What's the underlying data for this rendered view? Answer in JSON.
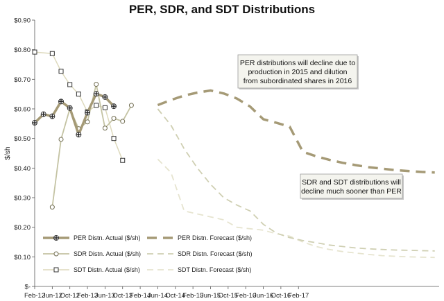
{
  "chart_data": {
    "type": "line",
    "title": "PER, SDR, and SDT Distributions",
    "ylabel": "$/sh",
    "xlabel": "",
    "ylim": [
      0,
      0.9
    ],
    "yticks": [
      {
        "value": 0,
        "label": "$-"
      },
      {
        "value": 0.1,
        "label": "$0.10"
      },
      {
        "value": 0.2,
        "label": "$0.20"
      },
      {
        "value": 0.3,
        "label": "$0.30"
      },
      {
        "value": 0.4,
        "label": "$0.40"
      },
      {
        "value": 0.5,
        "label": "$0.50"
      },
      {
        "value": 0.6,
        "label": "$0.60"
      },
      {
        "value": 0.7,
        "label": "$0.70"
      },
      {
        "value": 0.8,
        "label": "$0.80"
      },
      {
        "value": 0.9,
        "label": "$0.90"
      }
    ],
    "xticks": [
      "Feb-12",
      "Jun-12",
      "Oct-12",
      "Feb-13",
      "Jun-13",
      "Oct-13",
      "Feb-14",
      "Jun-14",
      "Oct-14",
      "Feb-15",
      "Jun-15",
      "Oct-15",
      "Feb-16",
      "Jun-16",
      "Oct-16",
      "Feb-17"
    ],
    "x_units": "months since Feb-12",
    "grid": false,
    "legend": "bottom-left",
    "series": [
      {
        "name": "PER Distn. Actual ($/sh)",
        "style": "actual-thick",
        "color": "#a59a76",
        "x": [
          0,
          2,
          4,
          6,
          8,
          10,
          12,
          14,
          16,
          18
        ],
        "y": [
          0.553,
          0.582,
          0.575,
          0.625,
          0.603,
          0.513,
          0.587,
          0.651,
          0.64,
          0.609
        ]
      },
      {
        "name": "SDR Distn. Actual ($/sh)",
        "style": "actual-thin",
        "color": "#c4c3a3",
        "x": [
          4,
          6,
          8,
          10,
          12,
          14,
          16,
          18,
          20,
          22
        ],
        "y": [
          0.268,
          0.497,
          0.601,
          0.533,
          0.556,
          0.683,
          0.535,
          0.568,
          0.558,
          0.612
        ]
      },
      {
        "name": "SDT Distn. Actual ($/sh)",
        "style": "actual-square",
        "color": "#ddd9bc",
        "x": [
          0,
          4,
          6,
          8,
          10,
          12,
          14,
          16,
          18,
          20
        ],
        "y": [
          0.792,
          0.787,
          0.727,
          0.682,
          0.65,
          0.59,
          0.612,
          0.604,
          0.5,
          0.426
        ]
      },
      {
        "name": "PER Distn. Forecast ($/sh)",
        "style": "forecast-thick",
        "color": "#a59a76",
        "x": [
          28,
          31,
          34,
          37,
          40,
          43,
          46,
          49,
          52,
          55,
          58,
          61,
          64,
          67,
          70,
          73,
          76,
          79,
          82,
          85,
          88,
          91
        ],
        "y": [
          0.613,
          0.63,
          0.645,
          0.655,
          0.662,
          0.652,
          0.635,
          0.608,
          0.565,
          0.553,
          0.54,
          0.455,
          0.44,
          0.428,
          0.418,
          0.41,
          0.403,
          0.398,
          0.393,
          0.39,
          0.387,
          0.385
        ]
      },
      {
        "name": "SDR Distn. Forecast ($/sh)",
        "style": "forecast-mid",
        "color": "#cfcfb2",
        "x": [
          28,
          31,
          34,
          37,
          40,
          43,
          46,
          49,
          52,
          55,
          58,
          61,
          64,
          67,
          70,
          73,
          76,
          79,
          82,
          85,
          88,
          91
        ],
        "y": [
          0.6,
          0.545,
          0.465,
          0.4,
          0.345,
          0.3,
          0.275,
          0.255,
          0.21,
          0.18,
          0.165,
          0.155,
          0.148,
          0.14,
          0.135,
          0.13,
          0.127,
          0.125,
          0.123,
          0.122,
          0.121,
          0.12
        ]
      },
      {
        "name": "SDT Distn. Forecast ($/sh)",
        "style": "forecast-light",
        "color": "#e6e4cf",
        "x": [
          28,
          31,
          34,
          37,
          40,
          43,
          46,
          49,
          52,
          55,
          58,
          61,
          64,
          67,
          70,
          73,
          76,
          79,
          82,
          85,
          88,
          91
        ],
        "y": [
          0.43,
          0.385,
          0.255,
          0.245,
          0.235,
          0.225,
          0.2,
          0.195,
          0.19,
          0.178,
          0.17,
          0.15,
          0.135,
          0.125,
          0.118,
          0.113,
          0.108,
          0.104,
          0.102,
          0.1,
          0.099,
          0.098
        ]
      }
    ],
    "annotations": [
      {
        "lines": [
          "PER distributions will decline due to",
          "production in 2015 and dilution",
          "from subordinated shares in 2016"
        ]
      },
      {
        "lines": [
          "SDR and SDT distributions will",
          "decline much sooner than PER"
        ]
      }
    ]
  }
}
